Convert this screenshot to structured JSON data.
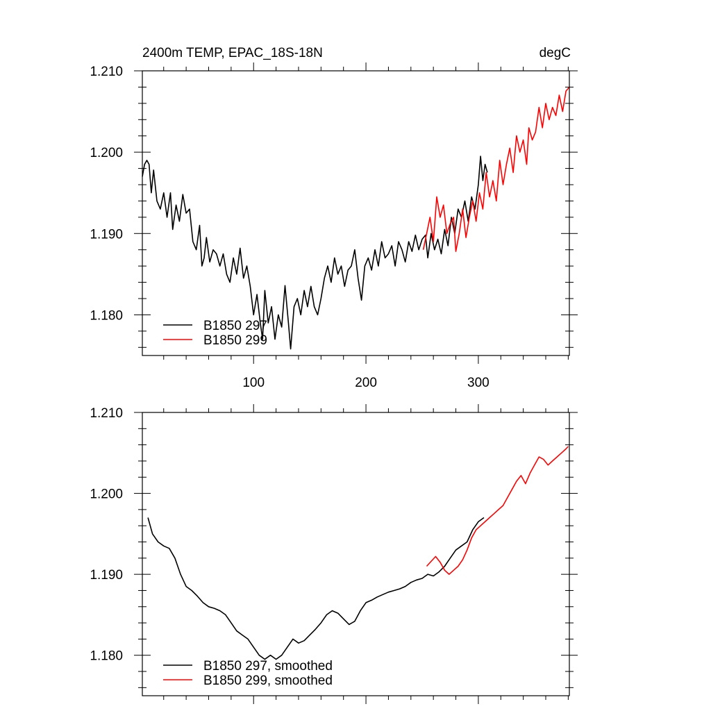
{
  "chart_data": [
    {
      "type": "line",
      "title_left": "2400m TEMP, EPAC_18S-18N",
      "title_right": "degC",
      "xlabel": "",
      "ylabel": "",
      "xlim": [
        1,
        381
      ],
      "ylim": [
        1.175,
        1.21
      ],
      "x_ticks": [
        100,
        200,
        300
      ],
      "y_ticks": [
        "1.180",
        "1.190",
        "1.200",
        "1.210"
      ],
      "legend_placement": "bottom-left",
      "series": [
        {
          "name": "B1850 297",
          "color": "#000000",
          "points": [
            [
              1,
              1.197
            ],
            [
              3,
              1.1985
            ],
            [
              5,
              1.199
            ],
            [
              7,
              1.1985
            ],
            [
              9,
              1.195
            ],
            [
              11,
              1.1978
            ],
            [
              14,
              1.194
            ],
            [
              17,
              1.193
            ],
            [
              20,
              1.195
            ],
            [
              23,
              1.192
            ],
            [
              26,
              1.195
            ],
            [
              28,
              1.1905
            ],
            [
              31,
              1.1935
            ],
            [
              34,
              1.1915
            ],
            [
              37,
              1.1948
            ],
            [
              40,
              1.1925
            ],
            [
              43,
              1.193
            ],
            [
              46,
              1.189
            ],
            [
              49,
              1.188
            ],
            [
              52,
              1.191
            ],
            [
              54,
              1.186
            ],
            [
              56,
              1.187
            ],
            [
              58,
              1.1895
            ],
            [
              61,
              1.1865
            ],
            [
              64,
              1.188
            ],
            [
              67,
              1.1875
            ],
            [
              70,
              1.186
            ],
            [
              73,
              1.1875
            ],
            [
              76,
              1.185
            ],
            [
              79,
              1.184
            ],
            [
              82,
              1.187
            ],
            [
              85,
              1.185
            ],
            [
              88,
              1.1882
            ],
            [
              91,
              1.1845
            ],
            [
              94,
              1.186
            ],
            [
              97,
              1.1835
            ],
            [
              100,
              1.18
            ],
            [
              103,
              1.1825
            ],
            [
              106,
              1.179
            ],
            [
              108,
              1.177
            ],
            [
              110,
              1.183
            ],
            [
              113,
              1.179
            ],
            [
              116,
              1.181
            ],
            [
              119,
              1.177
            ],
            [
              122,
              1.18
            ],
            [
              125,
              1.1785
            ],
            [
              128,
              1.1836
            ],
            [
              131,
              1.179
            ],
            [
              133,
              1.1758
            ],
            [
              136,
              1.181
            ],
            [
              139,
              1.182
            ],
            [
              142,
              1.18
            ],
            [
              145,
              1.183
            ],
            [
              148,
              1.181
            ],
            [
              151,
              1.1835
            ],
            [
              154,
              1.181
            ],
            [
              157,
              1.18
            ],
            [
              160,
              1.182
            ],
            [
              163,
              1.1845
            ],
            [
              166,
              1.186
            ],
            [
              169,
              1.184
            ],
            [
              172,
              1.187
            ],
            [
              175,
              1.185
            ],
            [
              178,
              1.186
            ],
            [
              181,
              1.1835
            ],
            [
              184,
              1.1855
            ],
            [
              187,
              1.186
            ],
            [
              190,
              1.188
            ],
            [
              193,
              1.1845
            ],
            [
              196,
              1.1818
            ],
            [
              199,
              1.186
            ],
            [
              202,
              1.187
            ],
            [
              205,
              1.1855
            ],
            [
              208,
              1.188
            ],
            [
              211,
              1.186
            ],
            [
              214,
              1.189
            ],
            [
              217,
              1.187
            ],
            [
              220,
              1.1875
            ],
            [
              223,
              1.1885
            ],
            [
              226,
              1.186
            ],
            [
              229,
              1.189
            ],
            [
              232,
              1.188
            ],
            [
              235,
              1.1865
            ],
            [
              238,
              1.189
            ],
            [
              241,
              1.1878
            ],
            [
              244,
              1.1898
            ],
            [
              247,
              1.188
            ],
            [
              250,
              1.1893
            ],
            [
              253,
              1.1898
            ],
            [
              255,
              1.187
            ],
            [
              258,
              1.19
            ],
            [
              261,
              1.188
            ],
            [
              264,
              1.1893
            ],
            [
              267,
              1.1875
            ],
            [
              270,
              1.1905
            ],
            [
              273,
              1.1885
            ],
            [
              276,
              1.192
            ],
            [
              279,
              1.19
            ],
            [
              282,
              1.193
            ],
            [
              285,
              1.192
            ],
            [
              288,
              1.194
            ],
            [
              291,
              1.1915
            ],
            [
              294,
              1.1945
            ],
            [
              297,
              1.193
            ],
            [
              300,
              1.196
            ],
            [
              302,
              1.1995
            ],
            [
              304,
              1.1965
            ],
            [
              306,
              1.1985
            ],
            [
              308,
              1.1975
            ]
          ]
        },
        {
          "name": "B1850 299",
          "color": "#ff0000",
          "points": [
            [
              251,
              1.188
            ],
            [
              254,
              1.19
            ],
            [
              257,
              1.192
            ],
            [
              260,
              1.189
            ],
            [
              263,
              1.1945
            ],
            [
              266,
              1.192
            ],
            [
              269,
              1.1935
            ],
            [
              272,
              1.19
            ],
            [
              275,
              1.1912
            ],
            [
              278,
              1.192
            ],
            [
              280,
              1.1878
            ],
            [
              283,
              1.19
            ],
            [
              286,
              1.193
            ],
            [
              289,
              1.1895
            ],
            [
              292,
              1.192
            ],
            [
              295,
              1.194
            ],
            [
              298,
              1.1915
            ],
            [
              301,
              1.195
            ],
            [
              304,
              1.193
            ],
            [
              307,
              1.1975
            ],
            [
              310,
              1.1945
            ],
            [
              313,
              1.1965
            ],
            [
              316,
              1.194
            ],
            [
              319,
              1.199
            ],
            [
              322,
              1.196
            ],
            [
              325,
              1.1985
            ],
            [
              328,
              1.2005
            ],
            [
              331,
              1.1975
            ],
            [
              334,
              1.202
            ],
            [
              337,
              1.2
            ],
            [
              340,
              1.2015
            ],
            [
              343,
              1.1985
            ],
            [
              345,
              1.203
            ],
            [
              348,
              1.2015
            ],
            [
              351,
              1.2025
            ],
            [
              354,
              1.2055
            ],
            [
              357,
              1.203
            ],
            [
              360,
              1.206
            ],
            [
              363,
              1.204
            ],
            [
              366,
              1.2055
            ],
            [
              369,
              1.2045
            ],
            [
              372,
              1.207
            ],
            [
              375,
              1.205
            ],
            [
              378,
              1.2075
            ],
            [
              381,
              1.208
            ]
          ]
        }
      ]
    },
    {
      "type": "line",
      "xlabel": "",
      "ylabel": "",
      "xlim": [
        1,
        381
      ],
      "ylim": [
        1.175,
        1.21
      ],
      "y_ticks": [
        "1.180",
        "1.190",
        "1.200",
        "1.210"
      ],
      "legend_placement": "bottom-left",
      "series": [
        {
          "name": "B1850 297, smoothed",
          "color": "#000000",
          "points": [
            [
              6,
              1.197
            ],
            [
              10,
              1.195
            ],
            [
              15,
              1.194
            ],
            [
              20,
              1.1935
            ],
            [
              25,
              1.1932
            ],
            [
              30,
              1.192
            ],
            [
              35,
              1.19
            ],
            [
              40,
              1.1885
            ],
            [
              45,
              1.188
            ],
            [
              50,
              1.1873
            ],
            [
              55,
              1.1865
            ],
            [
              60,
              1.186
            ],
            [
              65,
              1.1858
            ],
            [
              70,
              1.1855
            ],
            [
              75,
              1.185
            ],
            [
              80,
              1.184
            ],
            [
              85,
              1.183
            ],
            [
              90,
              1.1825
            ],
            [
              95,
              1.182
            ],
            [
              100,
              1.181
            ],
            [
              105,
              1.18
            ],
            [
              110,
              1.1795
            ],
            [
              115,
              1.18
            ],
            [
              120,
              1.1795
            ],
            [
              125,
              1.18
            ],
            [
              130,
              1.181
            ],
            [
              135,
              1.182
            ],
            [
              140,
              1.1815
            ],
            [
              145,
              1.1818
            ],
            [
              150,
              1.1825
            ],
            [
              155,
              1.1832
            ],
            [
              160,
              1.184
            ],
            [
              165,
              1.185
            ],
            [
              170,
              1.1855
            ],
            [
              175,
              1.1852
            ],
            [
              180,
              1.1845
            ],
            [
              185,
              1.1838
            ],
            [
              190,
              1.1842
            ],
            [
              195,
              1.1855
            ],
            [
              200,
              1.1865
            ],
            [
              205,
              1.1868
            ],
            [
              210,
              1.1872
            ],
            [
              215,
              1.1875
            ],
            [
              220,
              1.1878
            ],
            [
              225,
              1.188
            ],
            [
              230,
              1.1882
            ],
            [
              235,
              1.1885
            ],
            [
              240,
              1.189
            ],
            [
              245,
              1.1893
            ],
            [
              250,
              1.1895
            ],
            [
              255,
              1.19
            ],
            [
              260,
              1.1898
            ],
            [
              265,
              1.1903
            ],
            [
              270,
              1.191
            ],
            [
              275,
              1.192
            ],
            [
              280,
              1.193
            ],
            [
              285,
              1.1935
            ],
            [
              290,
              1.194
            ],
            [
              295,
              1.1955
            ],
            [
              300,
              1.1965
            ],
            [
              305,
              1.197
            ]
          ]
        },
        {
          "name": "B1850 299, smoothed",
          "color": "#ff0000",
          "points": [
            [
              254,
              1.191
            ],
            [
              258,
              1.1916
            ],
            [
              262,
              1.1922
            ],
            [
              266,
              1.1915
            ],
            [
              270,
              1.1905
            ],
            [
              274,
              1.19
            ],
            [
              278,
              1.1905
            ],
            [
              282,
              1.191
            ],
            [
              286,
              1.1918
            ],
            [
              290,
              1.193
            ],
            [
              294,
              1.1945
            ],
            [
              298,
              1.1955
            ],
            [
              302,
              1.196
            ],
            [
              306,
              1.1965
            ],
            [
              310,
              1.197
            ],
            [
              314,
              1.1975
            ],
            [
              318,
              1.198
            ],
            [
              322,
              1.1985
            ],
            [
              326,
              1.1995
            ],
            [
              330,
              1.2005
            ],
            [
              334,
              1.2015
            ],
            [
              338,
              1.2022
            ],
            [
              342,
              1.2012
            ],
            [
              346,
              1.2025
            ],
            [
              350,
              1.2035
            ],
            [
              354,
              1.2045
            ],
            [
              358,
              1.2042
            ],
            [
              362,
              1.2035
            ],
            [
              366,
              1.204
            ],
            [
              370,
              1.2045
            ],
            [
              374,
              1.205
            ],
            [
              378,
              1.2055
            ],
            [
              380,
              1.2058
            ]
          ]
        }
      ]
    }
  ]
}
